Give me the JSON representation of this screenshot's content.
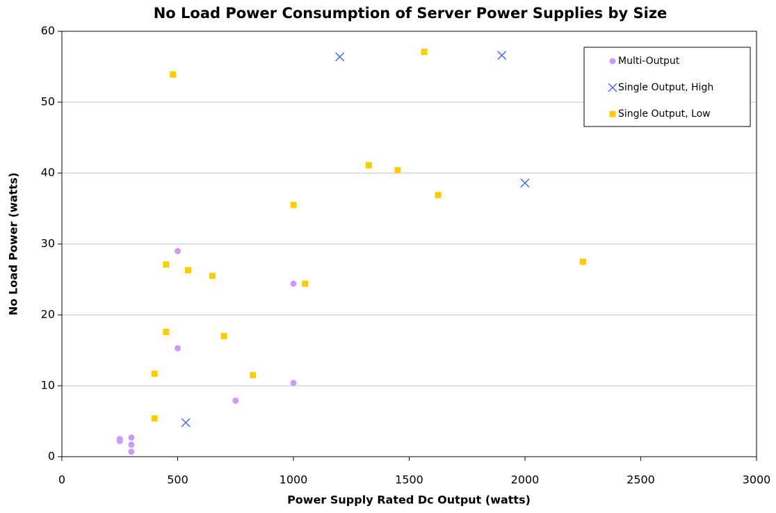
{
  "chart_data": {
    "type": "scatter",
    "title": "No Load Power Consumption of Server Power Supplies by Size",
    "x_label": "Power Supply Rated Dc Output (watts)",
    "y_label": "No Load Power (watts)",
    "xlim": [
      0,
      3000
    ],
    "xticks": [
      0,
      500,
      1000,
      1500,
      2000,
      2500,
      3000
    ],
    "ylim": [
      0,
      60
    ],
    "yticks": [
      0,
      10,
      20,
      30,
      40,
      50,
      60
    ],
    "grid": true,
    "legend": "upper right",
    "series": [
      {
        "name": "Multi-Output",
        "color": "#cc99ff",
        "marker": "circle",
        "x": [
          250,
          250,
          300,
          300,
          300,
          500,
          500,
          750,
          1000,
          1000
        ],
        "values": [
          2.5,
          2.2,
          2.7,
          1.7,
          0.7,
          29.0,
          15.3,
          7.9,
          24.4,
          10.4
        ]
      },
      {
        "name": "Single Output, High",
        "color": "#3366ff",
        "marker": "x",
        "x": [
          535,
          1200,
          1900,
          2000
        ],
        "values": [
          4.8,
          56.4,
          56.6,
          38.6
        ]
      },
      {
        "name": "Single Output, Low",
        "color": "#ffcc00",
        "marker": "square",
        "x": [
          480,
          400,
          400,
          450,
          450,
          545,
          650,
          700,
          825,
          1000,
          1050,
          1325,
          1450,
          1565,
          1625,
          2250
        ],
        "values": [
          53.9,
          11.7,
          5.4,
          27.1,
          17.6,
          26.3,
          25.5,
          17.0,
          11.5,
          35.5,
          24.4,
          41.1,
          40.4,
          57.1,
          36.9,
          27.5
        ]
      }
    ]
  }
}
